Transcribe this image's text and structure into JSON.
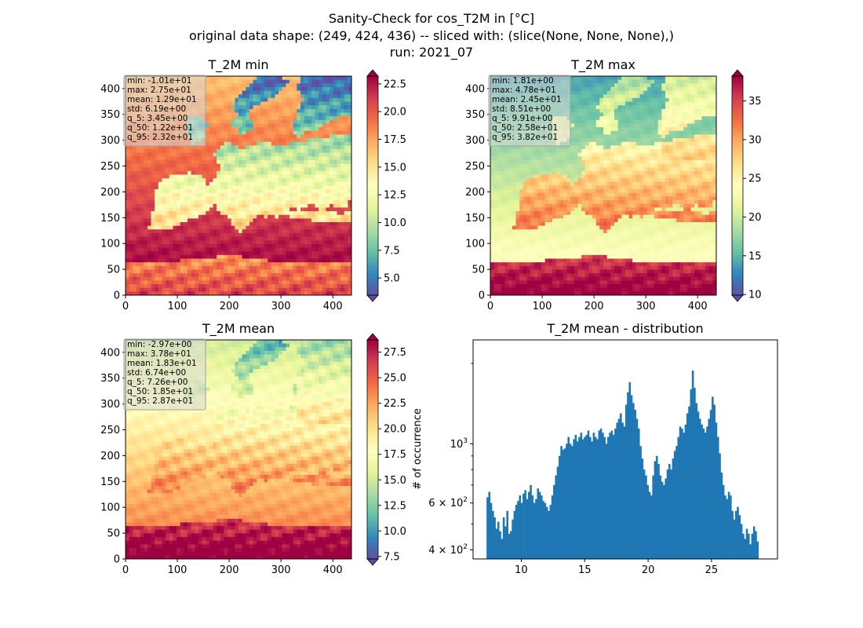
{
  "figure": {
    "title_lines": [
      "Sanity-Check for cos_T2M in [°C]",
      "original data shape: (249, 424, 436) -- sliced with: (slice(None, None, None),)",
      "run: 2021_07"
    ]
  },
  "colors": {
    "histogram_bar": "#1f77b4",
    "colormap": "Spectral_r",
    "colormap_stops": [
      "#5e4fa2",
      "#3288bd",
      "#66c2a5",
      "#abdda4",
      "#e6f598",
      "#ffffbf",
      "#fee08b",
      "#fdae61",
      "#f46d43",
      "#d53e4f",
      "#9e0142"
    ]
  },
  "chart_data": [
    {
      "type": "heatmap",
      "title": "T_2M min",
      "x_ticks": [
        "0",
        "100",
        "200",
        "300",
        "400"
      ],
      "y_ticks": [
        "0",
        "50",
        "100",
        "150",
        "200",
        "250",
        "300",
        "350",
        "400"
      ],
      "xlim": [
        0,
        436
      ],
      "ylim": [
        0,
        424
      ],
      "colorbar_ticks": [
        "5.0",
        "7.5",
        "10.0",
        "12.5",
        "15.0",
        "17.5",
        "20.0",
        "22.5"
      ],
      "colorbar_range": [
        3.45,
        23.2
      ],
      "stats_box": [
        "min: -1.01e+01",
        "max: 2.75e+01",
        "mean: 1.29e+01",
        "std: 6.19e+00",
        "q_5: 3.45e+00",
        "q_50: 1.22e+01",
        "q_95: 2.32e+01"
      ],
      "field": {
        "sea_north": 16.5,
        "sea_south": 24.0,
        "land_north": 4.0,
        "land_south": 21.0
      }
    },
    {
      "type": "heatmap",
      "title": "T_2M max",
      "x_ticks": [
        "0",
        "100",
        "200",
        "300",
        "400"
      ],
      "y_ticks": [
        "0",
        "50",
        "100",
        "150",
        "200",
        "250",
        "300",
        "350",
        "400"
      ],
      "xlim": [
        0,
        436
      ],
      "ylim": [
        0,
        424
      ],
      "colorbar_ticks": [
        "10",
        "15",
        "20",
        "25",
        "30",
        "35"
      ],
      "colorbar_range": [
        9.91,
        38.2
      ],
      "stats_box": [
        "min: 1.81e+00",
        "max: 4.78e+01",
        "mean: 2.45e+01",
        "std: 8.51e+00",
        "q_5: 9.91e+00",
        "q_50: 2.58e+01",
        "q_95: 3.82e+01"
      ],
      "field": {
        "sea_north": 14.0,
        "sea_south": 26.0,
        "land_north": 18.0,
        "land_south": 39.0
      }
    },
    {
      "type": "heatmap",
      "title": "T_2M mean",
      "x_ticks": [
        "0",
        "100",
        "200",
        "300",
        "400"
      ],
      "y_ticks": [
        "0",
        "50",
        "100",
        "150",
        "200",
        "250",
        "300",
        "350",
        "400"
      ],
      "xlim": [
        0,
        436
      ],
      "ylim": [
        0,
        424
      ],
      "colorbar_ticks": [
        "7.5",
        "10.0",
        "12.5",
        "15.0",
        "17.5",
        "20.0",
        "22.5",
        "25.0",
        "27.5"
      ],
      "colorbar_range": [
        7.26,
        28.7
      ],
      "stats_box": [
        "min: -2.97e+00",
        "max: 3.78e+01",
        "mean: 1.83e+01",
        "std: 6.74e+00",
        "q_5: 7.26e+00",
        "q_50: 1.85e+01",
        "q_95: 2.87e+01"
      ],
      "field": {
        "sea_north": 15.0,
        "sea_south": 25.0,
        "land_north": 11.0,
        "land_south": 30.0
      }
    },
    {
      "type": "bar",
      "title": "T_2M mean - distribution",
      "ylabel": "# of occurrence",
      "yscale": "log",
      "xlim": [
        6.2,
        30.2
      ],
      "ylim": [
        370,
        2450
      ],
      "x_ticks": [
        "10",
        "15",
        "20",
        "25"
      ],
      "y_tick_labels": [
        {
          "value": 400,
          "base": "4 × 10",
          "exp": "2"
        },
        {
          "value": 600,
          "base": "6 × 10",
          "exp": "2"
        },
        {
          "value": 1000,
          "base": "10",
          "exp": "3"
        }
      ],
      "y_minor_ticks": [
        500,
        700,
        800,
        900,
        2000
      ],
      "bin_start": 7.26,
      "bin_end": 28.7,
      "values": [
        630,
        660,
        600,
        560,
        530,
        480,
        510,
        470,
        440,
        530,
        490,
        560,
        460,
        470,
        520,
        560,
        590,
        610,
        640,
        600,
        650,
        670,
        620,
        660,
        700,
        640,
        600,
        620,
        680,
        660,
        640,
        610,
        600,
        580,
        560,
        590,
        640,
        700,
        760,
        820,
        900,
        980,
        950,
        960,
        1000,
        1060,
        1000,
        980,
        1040,
        1080,
        1020,
        1060,
        1100,
        1040,
        1060,
        1080,
        1120,
        1060,
        1020,
        1100,
        1060,
        1040,
        1120,
        1140,
        1100,
        1060,
        1000,
        1060,
        1100,
        1120,
        1080,
        1140,
        1200,
        1240,
        1300,
        1200,
        1160,
        1400,
        1560,
        1700,
        1520,
        1420,
        1340,
        1240,
        1140,
        980,
        880,
        800,
        760,
        700,
        660,
        640,
        760,
        860,
        900,
        840,
        760,
        720,
        700,
        740,
        800,
        840,
        800,
        880,
        940,
        980,
        1060,
        1160,
        1140,
        1100,
        1180,
        1300,
        1380,
        1600,
        1880,
        1620,
        1420,
        1320,
        1240,
        1180,
        1140,
        1100,
        1160,
        1240,
        1340,
        1500,
        1400,
        1200,
        1060,
        920,
        780,
        700,
        640,
        620,
        660,
        640,
        560,
        520,
        560,
        580,
        540,
        500,
        460,
        440,
        480,
        460,
        420,
        460,
        490,
        470,
        430
      ]
    }
  ]
}
